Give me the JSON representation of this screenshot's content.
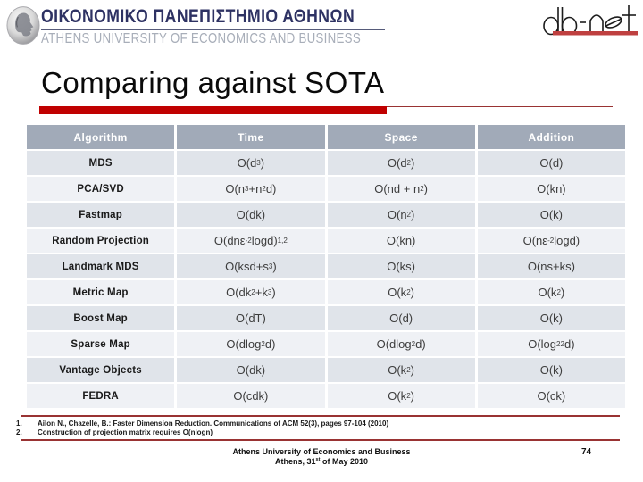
{
  "header": {
    "university_greek": "ΟΙΚΟΝΟΜΙΚΟ ΠΑΝΕΠΙΣΤΗΜΙΟ ΑΘΗΝΩΝ",
    "university_english": "ATHENS UNIVERSITY OF ECONOMICS AND BUSINESS",
    "coin_logo": "aueb-coin-emblem",
    "dbnet_logo_text": "db-net"
  },
  "title": "Comparing against SOTA",
  "table": {
    "columns": [
      "Algorithm",
      "Time",
      "Space",
      "Addition"
    ],
    "rows": [
      {
        "algorithm": "MDS",
        "time": "O(d^3^)",
        "space": "O(d^2^)",
        "addition": "O(d)"
      },
      {
        "algorithm": "PCA/SVD",
        "time": "O(n^3^+n^2^d)",
        "space": "O(nd + n^2^)",
        "addition": "O(kn)"
      },
      {
        "algorithm": "Fastmap",
        "time": "O(dk)",
        "space": "O(n^2^)",
        "addition": "O(k)"
      },
      {
        "algorithm": "Random Projection",
        "time": "O(dnε^-2^logd)^1,2^",
        "space": "O(kn)",
        "addition": "O(nε^-2^logd)"
      },
      {
        "algorithm": "Landmark MDS",
        "time": "O(ksd+s^3^)",
        "space": "O(ks)",
        "addition": "O(ns+ks)"
      },
      {
        "algorithm": "Metric Map",
        "time": "O(dk^2^+k^3^)",
        "space": "O(k^2^)",
        "addition": "O(k^2^)"
      },
      {
        "algorithm": "Boost Map",
        "time": "O(dT)",
        "space": "O(d)",
        "addition": "O(k)"
      },
      {
        "algorithm": "Sparse Map",
        "time": "O(dlog~2~d)",
        "space": "O(dlog~2~d)",
        "addition": "O(log~2~^2^d)"
      },
      {
        "algorithm": "Vantage Objects",
        "time": "O(dk)",
        "space": "O(k^2^)",
        "addition": "O(k)"
      },
      {
        "algorithm": "FEDRA",
        "time": "O(cdk)",
        "space": "O(k^2^)",
        "addition": "O(ck)"
      }
    ]
  },
  "footnotes": [
    {
      "num": "1.",
      "text": "Ailon N., Chazelle, B.: Faster Dimension Reduction. Communications of ACM 52(3), pages 97-104 (2010)"
    },
    {
      "num": "2.",
      "text": "Construction of projection matrix requires O(nlogn)"
    }
  ],
  "footer": {
    "line1": "Athens University of Economics and Business",
    "line2": "Athens, 31^st^ of May 2010",
    "page_number": "74"
  },
  "colors": {
    "accent_red": "#c00000",
    "thin_rule_red": "#993333",
    "table_header_bg": "#a1aab8",
    "row_odd_bg": "#e0e4ea",
    "row_even_bg": "#eff1f5",
    "university_navy": "#2e3263",
    "university_gray": "#a8aeb9"
  }
}
